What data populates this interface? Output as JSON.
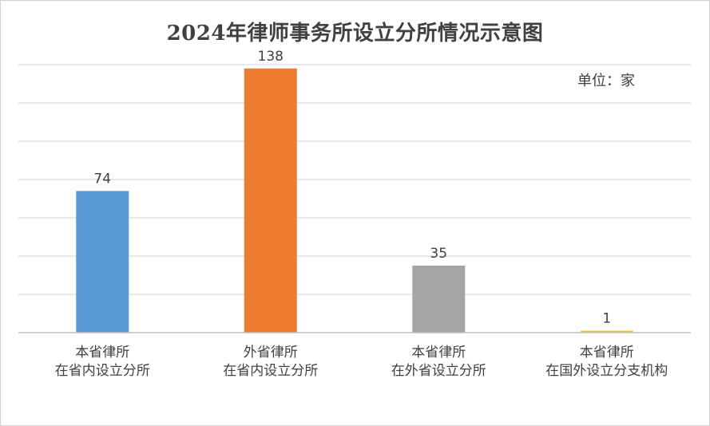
{
  "chart_data": {
    "type": "bar",
    "title": "2024年律师事务所设立分所情况示意图",
    "unit_label": "单位：家",
    "categories": [
      [
        "本省律所",
        "在省内设立分所"
      ],
      [
        "外省律所",
        "在省内设立分所"
      ],
      [
        "本省律所",
        "在外省设立分所"
      ],
      [
        "本省律所",
        "在国外设立分支机构"
      ]
    ],
    "values": [
      74,
      138,
      35,
      1
    ],
    "colors": [
      "#5b9bd5",
      "#ed7d31",
      "#a5a5a5",
      "#ffc000"
    ],
    "ylim": [
      0,
      140
    ],
    "gridline_step": 20,
    "grid": true,
    "gridline_color": "#d9d9d9"
  }
}
